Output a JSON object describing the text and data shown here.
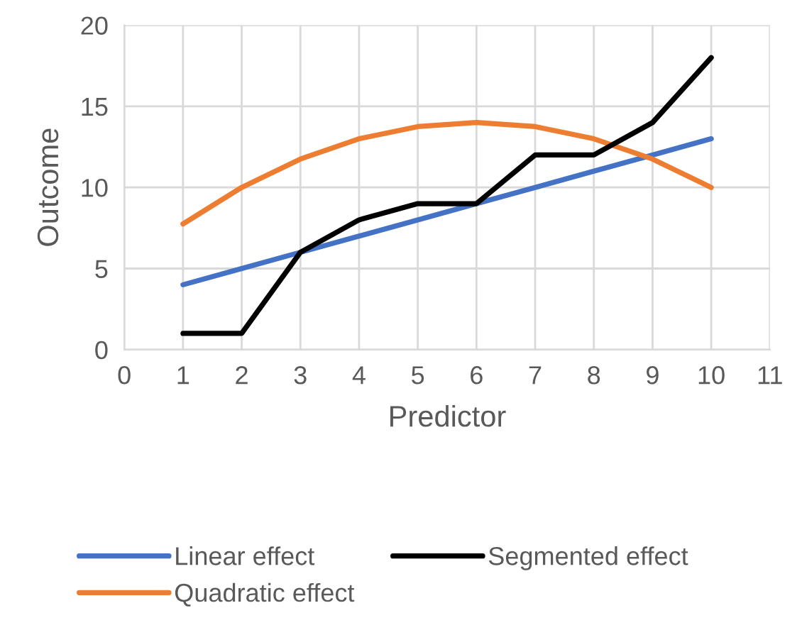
{
  "chart_data": {
    "type": "line",
    "xlabel": "Predictor",
    "ylabel": "Outcome",
    "x": [
      1,
      2,
      3,
      4,
      5,
      6,
      7,
      8,
      9,
      10
    ],
    "series": [
      {
        "name": "Linear effect",
        "color": "#4472c4",
        "values": [
          4,
          5,
          6,
          7,
          8,
          9,
          10,
          11,
          12,
          13
        ]
      },
      {
        "name": "Quadratic effect",
        "color": "#ed7d31",
        "values": [
          7.75,
          10,
          11.75,
          13,
          13.75,
          14,
          13.75,
          13,
          11.75,
          10
        ]
      },
      {
        "name": "Segmented effect",
        "color": "#000000",
        "values": [
          1,
          1,
          6,
          8,
          9,
          9,
          12,
          12,
          14,
          18
        ]
      }
    ],
    "xlim": [
      0,
      11
    ],
    "xticks": [
      0,
      1,
      2,
      3,
      4,
      5,
      6,
      7,
      8,
      9,
      10,
      11
    ],
    "ylim": [
      0,
      20
    ],
    "yticks": [
      0,
      5,
      10,
      15,
      20
    ],
    "grid": true,
    "legend": "bottom",
    "marker": "none",
    "line_style": "solid"
  }
}
